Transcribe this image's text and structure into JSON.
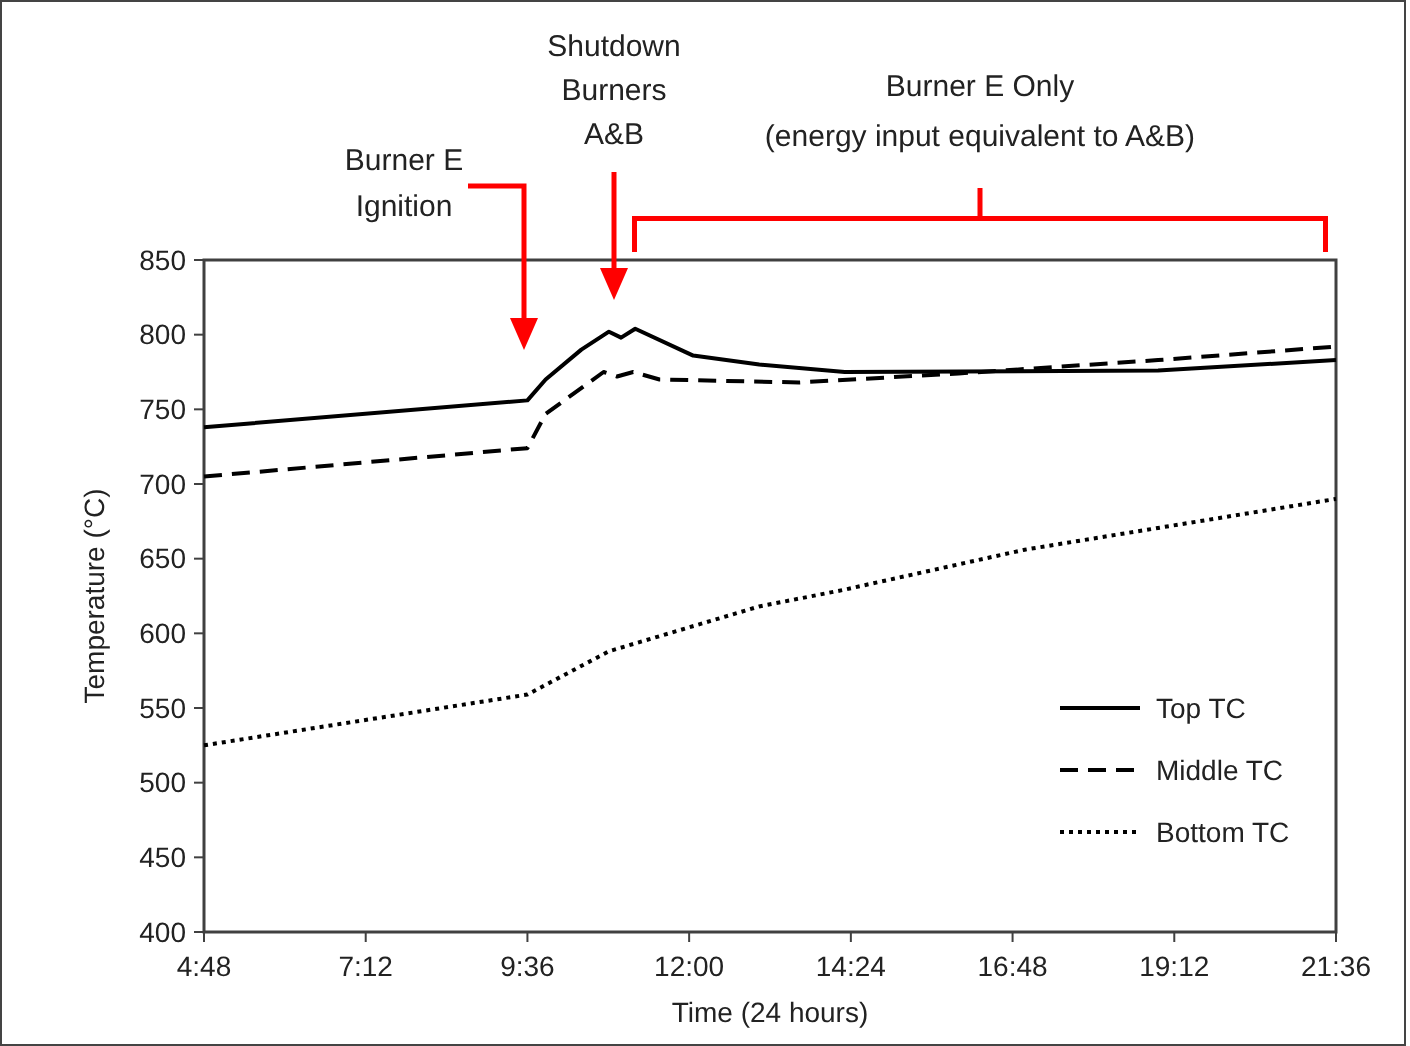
{
  "chart_data": {
    "type": "line",
    "xlabel": "Time (24 hours)",
    "ylabel": "Temperature (°C)",
    "xlim": [
      4.8,
      21.6
    ],
    "xticks": [
      {
        "value": 4.8,
        "label": "4:48"
      },
      {
        "value": 7.2,
        "label": "7:12"
      },
      {
        "value": 9.6,
        "label": "9:36"
      },
      {
        "value": 12,
        "label": "12:00"
      },
      {
        "value": 14.4,
        "label": "14:24"
      },
      {
        "value": 16.8,
        "label": "16:48"
      },
      {
        "value": 19.2,
        "label": "19:12"
      },
      {
        "value": 21.6,
        "label": "21:36"
      }
    ],
    "ylim": [
      400,
      850
    ],
    "yticks": [
      400,
      450,
      500,
      550,
      600,
      650,
      700,
      750,
      800,
      850
    ],
    "legend": "bottom right",
    "grid": false,
    "marker": "none",
    "series": [
      {
        "name": "Top TC",
        "color": "#000000",
        "line_style": "solid",
        "x": [
          4.8,
          9.6,
          9.87,
          10.4,
          10.81,
          10.99,
          11.2,
          12.06,
          13.04,
          14.31,
          18.96,
          21.6
        ],
        "values": [
          738,
          756,
          770,
          790,
          802,
          798,
          804,
          786,
          780,
          775,
          776,
          783
        ]
      },
      {
        "name": "Middle TC",
        "color": "#000000",
        "line_style": "dashed",
        "x": [
          4.8,
          9.6,
          9.87,
          10.73,
          10.93,
          11.17,
          11.56,
          13.63,
          16.0,
          18.96,
          21.6
        ],
        "values": [
          705,
          724,
          747,
          775,
          772,
          775,
          770,
          768,
          774,
          783,
          792
        ]
      },
      {
        "name": "Bottom TC",
        "color": "#000000",
        "line_style": "dotted",
        "x": [
          4.8,
          9.6,
          10.81,
          13.04,
          14.28,
          16.98,
          21.6
        ],
        "values": [
          525,
          559,
          588,
          618,
          629,
          656,
          690
        ]
      }
    ],
    "annotations": [
      "Burner E\nIgnition",
      "Shutdown\nBurners\nA&B",
      "Burner E Only\n(energy input equivalent to A&B)"
    ]
  }
}
